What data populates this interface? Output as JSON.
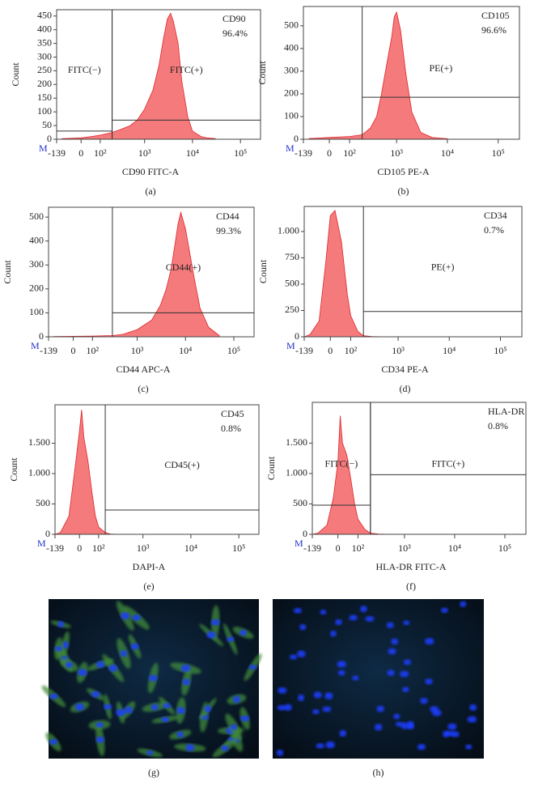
{
  "chart_data": [
    {
      "type": "area",
      "caption": "(a)",
      "corner_label": "M",
      "marker": "CD90",
      "percent": "96.4%",
      "xlabel": "CD90 FITC-A",
      "ylabel": "Count",
      "xscale": "biexponential",
      "color": "#f47a7c",
      "line_color": "#e0262b",
      "xlim": [
        -139,
        262144
      ],
      "xticks": [
        -139,
        0,
        {
          "value": 100,
          "label": "10²"
        },
        {
          "value": 1000,
          "label": "10³"
        },
        {
          "value": 10000,
          "label": "10⁴"
        },
        {
          "value": 100000,
          "label": "10⁵"
        }
      ],
      "ylim": [
        0,
        473
      ],
      "yticks": [
        0,
        50,
        100,
        150,
        200,
        250,
        300,
        350,
        400,
        450
      ],
      "x": [
        -100,
        0,
        50,
        100,
        150,
        200,
        300,
        500,
        700,
        1000,
        1500,
        2000,
        2500,
        3000,
        3500,
        4000,
        5000,
        6000,
        8000,
        10000,
        15000,
        20000,
        30000
      ],
      "values": [
        2,
        5,
        10,
        15,
        20,
        25,
        35,
        50,
        70,
        110,
        180,
        270,
        370,
        440,
        460,
        430,
        350,
        210,
        80,
        30,
        10,
        5,
        2
      ],
      "gates": [
        {
          "label": "FITC(−)",
          "xlim": [
            -139,
            200
          ],
          "y": 30
        },
        {
          "label": "FITC(+)",
          "xlim": [
            200,
            262144
          ],
          "y": 70
        }
      ]
    },
    {
      "type": "area",
      "caption": "(b)",
      "corner_label": "M",
      "marker": "CD105",
      "percent": "96.6%",
      "xlabel": "CD105 PE-A",
      "ylabel": "Count",
      "xscale": "biexponential",
      "color": "#f47a7c",
      "line_color": "#e0262b",
      "xlim": [
        -139,
        262144
      ],
      "xticks": [
        -139,
        0,
        {
          "value": 100,
          "label": "10²"
        },
        {
          "value": 1000,
          "label": "10³"
        },
        {
          "value": 10000,
          "label": "10⁴"
        },
        {
          "value": 100000,
          "label": "10⁵"
        }
      ],
      "ylim": [
        0,
        585
      ],
      "yticks": [
        0,
        100,
        200,
        300,
        400,
        500
      ],
      "x": [
        -100,
        0,
        100,
        200,
        300,
        400,
        500,
        600,
        700,
        800,
        900,
        1000,
        1200,
        1500,
        2000,
        3000,
        5000,
        10000
      ],
      "values": [
        3,
        8,
        12,
        20,
        50,
        100,
        200,
        300,
        380,
        450,
        540,
        560,
        480,
        300,
        120,
        30,
        8,
        2
      ],
      "gates": [
        {
          "label": "PE(+)",
          "xlim": [
            200,
            262144
          ],
          "y": 185
        }
      ]
    },
    {
      "type": "area",
      "caption": "(c)",
      "corner_label": "M",
      "marker": "CD44",
      "percent": "99.3%",
      "xlabel": "CD44 APC-A",
      "ylabel": "Count",
      "xscale": "biexponential",
      "color": "#f47a7c",
      "line_color": "#e0262b",
      "xlim": [
        -139,
        262144
      ],
      "xticks": [
        -139,
        0,
        {
          "value": 100,
          "label": "10²"
        },
        {
          "value": 1000,
          "label": "10³"
        },
        {
          "value": 10000,
          "label": "10⁴"
        },
        {
          "value": 100000,
          "label": "10⁵"
        }
      ],
      "ylim": [
        0,
        541
      ],
      "yticks": [
        0,
        100,
        200,
        300,
        400,
        500
      ],
      "x": [
        -100,
        0,
        100,
        300,
        500,
        1000,
        2000,
        3000,
        4000,
        5000,
        6000,
        7000,
        8000,
        10000,
        15000,
        20000,
        30000,
        50000
      ],
      "values": [
        1,
        2,
        3,
        5,
        10,
        30,
        70,
        130,
        200,
        280,
        380,
        470,
        520,
        450,
        250,
        120,
        40,
        5
      ],
      "gates": [
        {
          "label": "CD44(+)",
          "xlim": [
            300,
            262144
          ],
          "y": 100
        }
      ]
    },
    {
      "type": "area",
      "caption": "(d)",
      "corner_label": "M",
      "marker": "CD34",
      "percent": "0.7%",
      "xlabel": "CD34 PE-A",
      "ylabel": "Count",
      "xscale": "biexponential",
      "color": "#f47a7c",
      "line_color": "#e0262b",
      "xlim": [
        -139,
        262144
      ],
      "xticks": [
        -139,
        0,
        {
          "value": 100,
          "label": "10²"
        },
        {
          "value": 1000,
          "label": "10³"
        },
        {
          "value": 10000,
          "label": "10⁴"
        },
        {
          "value": 100000,
          "label": "10⁵"
        }
      ],
      "ylim": [
        0,
        1238
      ],
      "yticks": [
        0,
        250,
        500,
        750,
        {
          "value": 1000,
          "label": "1.000"
        }
      ],
      "x": [
        -139,
        -100,
        -50,
        -20,
        0,
        20,
        50,
        80,
        100,
        150,
        200,
        300,
        500
      ],
      "values": [
        0,
        20,
        150,
        700,
        1150,
        1200,
        900,
        400,
        200,
        50,
        10,
        3,
        0
      ],
      "gates": [
        {
          "label": "PE(+)",
          "xlim": [
            200,
            262144
          ],
          "y": 240
        }
      ]
    },
    {
      "type": "area",
      "caption": "(e)",
      "corner_label": "M",
      "marker": "CD45",
      "percent": "0.8%",
      "xlabel": "DAPI-A",
      "ylabel": "Count",
      "xscale": "biexponential",
      "color": "#f47a7c",
      "line_color": "#e0262b",
      "xlim": [
        -139,
        262144
      ],
      "xticks": [
        -139,
        0,
        {
          "value": 100,
          "label": "10²"
        },
        {
          "value": 1000,
          "label": "10³"
        },
        {
          "value": 10000,
          "label": "10⁴"
        },
        {
          "value": 100000,
          "label": "10⁵"
        }
      ],
      "ylim": [
        0,
        2133
      ],
      "yticks": [
        0,
        500,
        {
          "value": 1000,
          "label": "1.000"
        },
        {
          "value": 1500,
          "label": "1.500"
        }
      ],
      "x": [
        -139,
        -100,
        -50,
        -20,
        0,
        10,
        20,
        40,
        60,
        80,
        100,
        150,
        200,
        300
      ],
      "values": [
        0,
        30,
        300,
        1100,
        1700,
        2050,
        1600,
        1200,
        700,
        300,
        120,
        30,
        5,
        0
      ],
      "gates": [
        {
          "label": "CD45(+)",
          "xlim": [
            150,
            262144
          ],
          "y": 400
        }
      ]
    },
    {
      "type": "area",
      "caption": "(f)",
      "corner_label": "M",
      "marker": "HLA-DR",
      "percent": "0.8%",
      "xlabel": "HLA-DR FITC-A",
      "ylabel": "Count",
      "xscale": "biexponential",
      "color": "#f47a7c",
      "line_color": "#e0262b",
      "xlim": [
        -139,
        262144
      ],
      "xticks": [
        -139,
        0,
        {
          "value": 100,
          "label": "10²"
        },
        {
          "value": 1000,
          "label": "10³"
        },
        {
          "value": 10000,
          "label": "10⁴"
        },
        {
          "value": 100000,
          "label": "10⁵"
        }
      ],
      "ylim": [
        0,
        2170
      ],
      "yticks": [
        0,
        500,
        {
          "value": 1000,
          "label": "1.000"
        },
        {
          "value": 1500,
          "label": "1.500"
        }
      ],
      "x": [
        -139,
        -100,
        -50,
        -20,
        0,
        10,
        20,
        40,
        60,
        80,
        100,
        150,
        200,
        300,
        500
      ],
      "values": [
        0,
        20,
        150,
        600,
        1200,
        1950,
        1500,
        1300,
        900,
        500,
        250,
        80,
        20,
        5,
        0
      ],
      "gates": [
        {
          "label": "FITC(−)",
          "xlim": [
            -139,
            200
          ],
          "y": 480
        },
        {
          "label": "FITC(+)",
          "xlim": [
            200,
            262144
          ],
          "y": 980
        }
      ]
    }
  ],
  "images": [
    {
      "caption": "(g)"
    },
    {
      "caption": "(h)"
    }
  ]
}
